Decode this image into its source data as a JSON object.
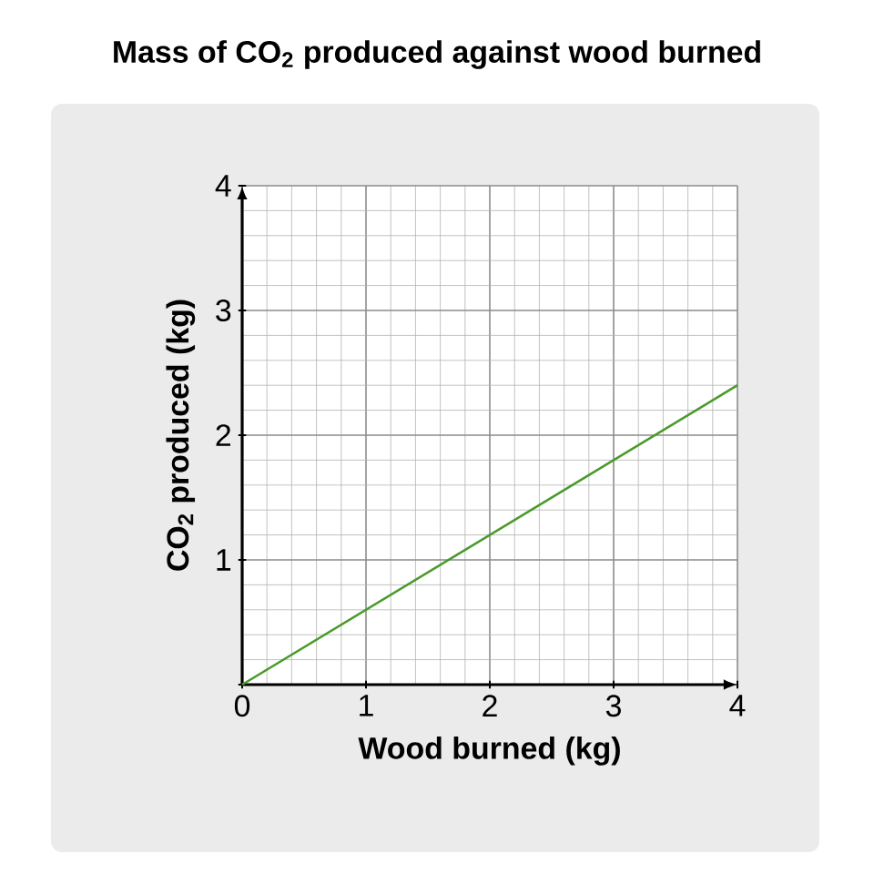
{
  "chart_data": {
    "type": "line",
    "title": "Mass of CO$_{2}$ produced against wood burned",
    "xlabel": "Wood burned (kg)",
    "ylabel": "CO$_{2}$ produced (kg)",
    "x": [
      0,
      4
    ],
    "series": [
      {
        "color": "#4a9a2a",
        "values": [
          0,
          2.4
        ]
      }
    ],
    "xlim": [
      0,
      4
    ],
    "ylim": [
      0,
      4
    ],
    "xticks": [
      0,
      1,
      2,
      3,
      4
    ],
    "yticks": [
      {
        "value": 0,
        "label": null
      },
      1,
      2,
      3,
      4
    ],
    "grid": true
  }
}
